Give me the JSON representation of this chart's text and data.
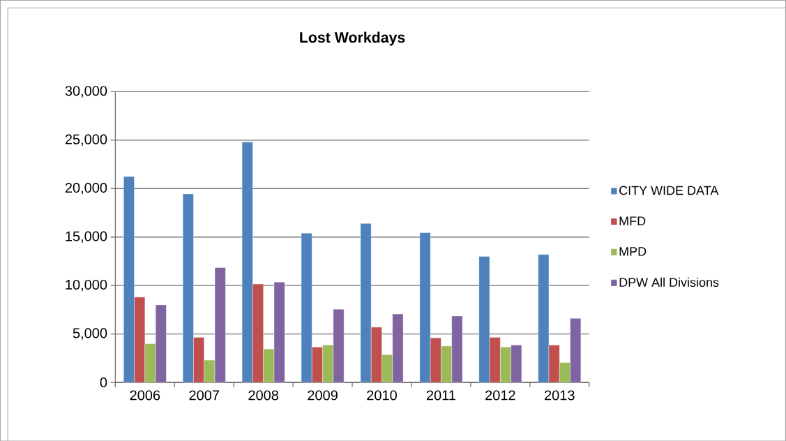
{
  "chart_data": {
    "type": "bar",
    "title": "Lost Workdays",
    "categories": [
      "2006",
      "2007",
      "2008",
      "2009",
      "2010",
      "2011",
      "2012",
      "2013"
    ],
    "series": [
      {
        "name": "CITY WIDE DATA",
        "color": "#4f81bd",
        "values": [
          21250,
          19450,
          24800,
          15400,
          16400,
          15450,
          13000,
          13200
        ]
      },
      {
        "name": "MFD",
        "color": "#c0504d",
        "values": [
          8800,
          4650,
          10150,
          3650,
          5700,
          4600,
          4650,
          3850
        ]
      },
      {
        "name": "MPD",
        "color": "#9bbb59",
        "values": [
          4000,
          2300,
          3450,
          3850,
          2850,
          3750,
          3650,
          2050
        ]
      },
      {
        "name": "DPW All Divisions",
        "color": "#8064a2",
        "values": [
          8000,
          11850,
          10350,
          7550,
          7050,
          6850,
          3850,
          6600
        ]
      }
    ],
    "ylim": [
      0,
      30000
    ],
    "yticks": [
      0,
      {
        "value": 5000,
        "label": "5,000"
      },
      {
        "value": 10000,
        "label": "10,000"
      },
      {
        "value": 15000,
        "label": "15,000"
      },
      {
        "value": 20000,
        "label": "20,000"
      },
      {
        "value": 25000,
        "label": "25,000"
      },
      {
        "value": 30000,
        "label": "30,000"
      }
    ],
    "grid": "y",
    "legend": "right"
  }
}
